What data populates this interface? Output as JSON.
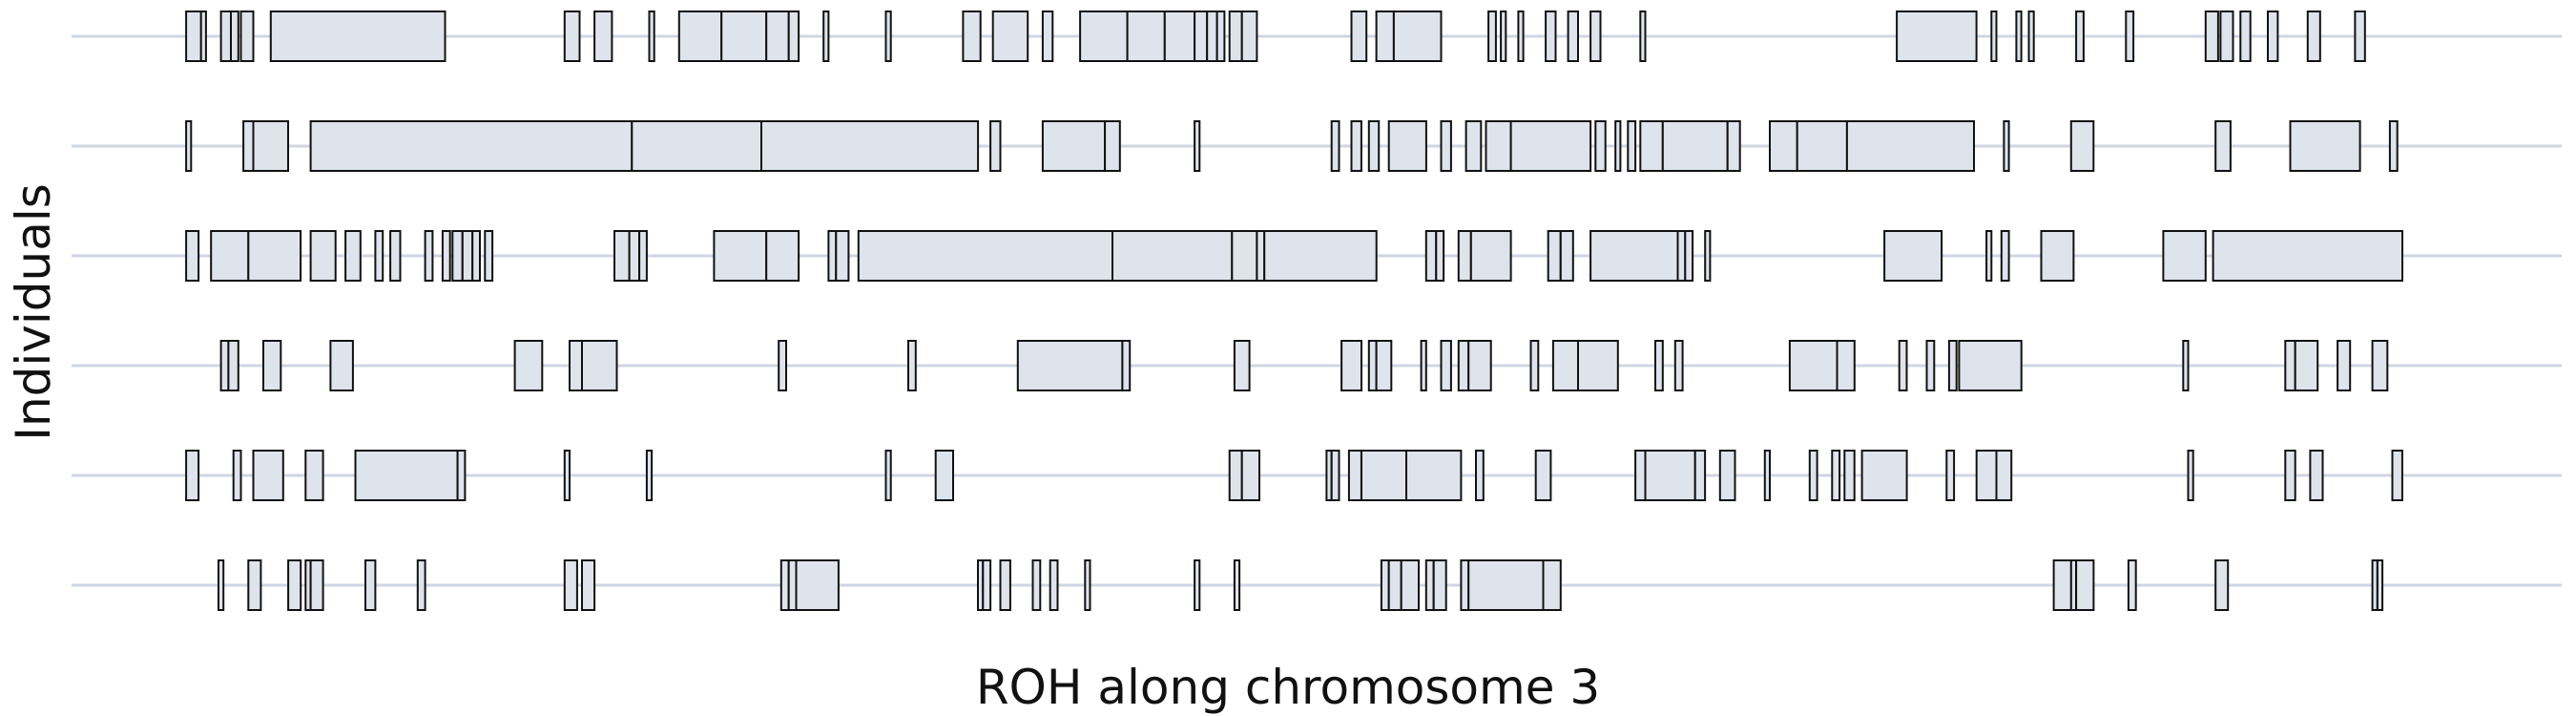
{
  "chart_data": {
    "type": "bar",
    "title": "",
    "xlabel": "ROH along chromosome 3",
    "ylabel": "Individuals",
    "xlim": [
      0,
      100
    ],
    "grid": true,
    "colors": {
      "segment_fill": "#dfe3ec",
      "segment_stroke": "#111111",
      "track_line": "#cfd6e2"
    },
    "series": [
      {
        "segments": [
          [
            4.6,
            5.2
          ],
          [
            5.2,
            5.4
          ],
          [
            6.0,
            6.4
          ],
          [
            6.4,
            6.7
          ],
          [
            6.8,
            7.3
          ],
          [
            8.0,
            15.0
          ],
          [
            19.8,
            20.4
          ],
          [
            21.0,
            21.7
          ],
          [
            23.2,
            23.4
          ],
          [
            24.4,
            26.1
          ],
          [
            26.1,
            27.9
          ],
          [
            27.9,
            28.8
          ],
          [
            28.8,
            29.2
          ],
          [
            30.2,
            30.4
          ],
          [
            32.7,
            32.9
          ],
          [
            35.8,
            36.5
          ],
          [
            37.0,
            38.4
          ],
          [
            39.0,
            39.4
          ],
          [
            40.5,
            42.4
          ],
          [
            42.4,
            43.9
          ],
          [
            43.9,
            45.1
          ],
          [
            45.1,
            45.6
          ],
          [
            45.6,
            46.0
          ],
          [
            46.0,
            46.3
          ],
          [
            46.5,
            47.0
          ],
          [
            47.0,
            47.6
          ],
          [
            51.4,
            52.0
          ],
          [
            52.4,
            53.1
          ],
          [
            53.1,
            55.0
          ],
          [
            56.9,
            57.2
          ],
          [
            57.4,
            57.6
          ],
          [
            58.1,
            58.3
          ],
          [
            59.2,
            59.6
          ],
          [
            60.1,
            60.5
          ],
          [
            61.0,
            61.4
          ],
          [
            63.0,
            63.2
          ],
          [
            73.3,
            76.5
          ],
          [
            77.1,
            77.3
          ],
          [
            78.1,
            78.3
          ],
          [
            78.6,
            78.8
          ],
          [
            80.5,
            80.8
          ],
          [
            82.5,
            82.8
          ],
          [
            85.7,
            86.2
          ],
          [
            86.3,
            86.8
          ],
          [
            87.1,
            87.5
          ],
          [
            88.2,
            88.6
          ],
          [
            89.8,
            90.3
          ],
          [
            91.7,
            92.1
          ]
        ]
      },
      {
        "segments": [
          [
            4.6,
            4.8
          ],
          [
            6.9,
            7.3
          ],
          [
            7.3,
            8.7
          ],
          [
            9.6,
            22.5
          ],
          [
            22.5,
            27.7
          ],
          [
            27.7,
            36.4
          ],
          [
            36.9,
            37.3
          ],
          [
            39.0,
            41.5
          ],
          [
            41.5,
            42.1
          ],
          [
            45.1,
            45.3
          ],
          [
            50.6,
            50.9
          ],
          [
            51.4,
            51.8
          ],
          [
            52.1,
            52.5
          ],
          [
            52.9,
            54.4
          ],
          [
            55.0,
            55.4
          ],
          [
            56.0,
            56.6
          ],
          [
            56.8,
            57.8
          ],
          [
            57.8,
            61.0
          ],
          [
            61.2,
            61.6
          ],
          [
            62.0,
            62.2
          ],
          [
            62.5,
            62.8
          ],
          [
            63.0,
            63.9
          ],
          [
            63.9,
            66.5
          ],
          [
            66.5,
            67.0
          ],
          [
            68.2,
            69.3
          ],
          [
            69.3,
            71.3
          ],
          [
            71.3,
            76.4
          ],
          [
            77.6,
            77.8
          ],
          [
            80.3,
            81.2
          ],
          [
            86.1,
            86.7
          ],
          [
            89.1,
            91.9
          ],
          [
            93.1,
            93.4
          ]
        ]
      },
      {
        "segments": [
          [
            4.6,
            5.1
          ],
          [
            5.6,
            7.1
          ],
          [
            7.1,
            9.2
          ],
          [
            9.6,
            10.6
          ],
          [
            11.0,
            11.6
          ],
          [
            12.2,
            12.5
          ],
          [
            12.8,
            13.2
          ],
          [
            14.2,
            14.5
          ],
          [
            14.9,
            15.2
          ],
          [
            15.3,
            15.7
          ],
          [
            15.7,
            16.1
          ],
          [
            16.1,
            16.4
          ],
          [
            16.6,
            16.9
          ],
          [
            21.8,
            22.4
          ],
          [
            22.4,
            22.8
          ],
          [
            22.8,
            23.1
          ],
          [
            25.8,
            27.9
          ],
          [
            27.9,
            29.2
          ],
          [
            30.4,
            30.7
          ],
          [
            30.7,
            31.2
          ],
          [
            31.6,
            41.8
          ],
          [
            41.8,
            46.6
          ],
          [
            46.6,
            47.6
          ],
          [
            47.6,
            47.9
          ],
          [
            47.9,
            52.4
          ],
          [
            54.4,
            54.8
          ],
          [
            54.8,
            55.1
          ],
          [
            55.7,
            56.2
          ],
          [
            56.2,
            57.8
          ],
          [
            59.3,
            59.8
          ],
          [
            59.8,
            60.3
          ],
          [
            61.0,
            64.5
          ],
          [
            64.5,
            64.8
          ],
          [
            64.8,
            65.1
          ],
          [
            65.6,
            65.8
          ],
          [
            72.8,
            75.1
          ],
          [
            76.9,
            77.1
          ],
          [
            77.5,
            77.8
          ],
          [
            79.1,
            80.4
          ],
          [
            84.0,
            85.7
          ],
          [
            86.0,
            93.6
          ]
        ]
      },
      {
        "segments": [
          [
            6.0,
            6.3
          ],
          [
            6.3,
            6.7
          ],
          [
            7.7,
            8.4
          ],
          [
            10.4,
            11.3
          ],
          [
            17.8,
            18.9
          ],
          [
            20.0,
            20.5
          ],
          [
            20.5,
            21.9
          ],
          [
            28.4,
            28.7
          ],
          [
            33.6,
            33.9
          ],
          [
            38.0,
            42.2
          ],
          [
            42.2,
            42.5
          ],
          [
            46.7,
            47.3
          ],
          [
            51.0,
            51.8
          ],
          [
            52.1,
            52.4
          ],
          [
            52.4,
            53.0
          ],
          [
            54.2,
            54.4
          ],
          [
            55.0,
            55.4
          ],
          [
            55.7,
            56.1
          ],
          [
            56.1,
            57.0
          ],
          [
            58.6,
            58.9
          ],
          [
            59.5,
            60.5
          ],
          [
            60.5,
            62.1
          ],
          [
            63.6,
            63.9
          ],
          [
            64.4,
            64.7
          ],
          [
            69.0,
            70.9
          ],
          [
            70.9,
            71.6
          ],
          [
            73.4,
            73.7
          ],
          [
            74.5,
            74.8
          ],
          [
            75.4,
            75.7
          ],
          [
            75.8,
            78.3
          ],
          [
            84.8,
            85.0
          ],
          [
            88.9,
            89.3
          ],
          [
            89.3,
            90.2
          ],
          [
            91.0,
            91.5
          ],
          [
            92.4,
            93.0
          ]
        ]
      },
      {
        "segments": [
          [
            4.6,
            5.1
          ],
          [
            6.5,
            6.8
          ],
          [
            7.3,
            8.5
          ],
          [
            9.4,
            10.1
          ],
          [
            11.4,
            15.5
          ],
          [
            15.5,
            15.8
          ],
          [
            19.8,
            20.0
          ],
          [
            23.1,
            23.3
          ],
          [
            32.7,
            32.9
          ],
          [
            34.7,
            35.4
          ],
          [
            46.5,
            47.0
          ],
          [
            47.0,
            47.7
          ],
          [
            50.4,
            50.6
          ],
          [
            50.6,
            50.9
          ],
          [
            51.3,
            51.8
          ],
          [
            51.8,
            53.6
          ],
          [
            53.6,
            55.8
          ],
          [
            56.4,
            56.7
          ],
          [
            58.8,
            59.4
          ],
          [
            62.8,
            63.2
          ],
          [
            63.2,
            65.2
          ],
          [
            65.2,
            65.6
          ],
          [
            66.2,
            66.8
          ],
          [
            68.0,
            68.2
          ],
          [
            69.8,
            70.1
          ],
          [
            70.7,
            71.0
          ],
          [
            71.2,
            71.6
          ],
          [
            71.9,
            73.7
          ],
          [
            75.3,
            75.6
          ],
          [
            76.5,
            77.3
          ],
          [
            77.3,
            77.9
          ],
          [
            85.0,
            85.2
          ],
          [
            88.9,
            89.3
          ],
          [
            89.9,
            90.4
          ],
          [
            93.2,
            93.6
          ]
        ]
      },
      {
        "segments": [
          [
            5.9,
            6.1
          ],
          [
            7.1,
            7.6
          ],
          [
            8.7,
            9.2
          ],
          [
            9.4,
            9.6
          ],
          [
            9.6,
            10.1
          ],
          [
            11.8,
            12.2
          ],
          [
            13.9,
            14.2
          ],
          [
            19.8,
            20.3
          ],
          [
            20.5,
            21.0
          ],
          [
            28.5,
            28.8
          ],
          [
            28.8,
            29.1
          ],
          [
            29.1,
            30.8
          ],
          [
            36.4,
            36.6
          ],
          [
            36.6,
            36.9
          ],
          [
            37.3,
            37.7
          ],
          [
            38.6,
            38.9
          ],
          [
            39.3,
            39.6
          ],
          [
            40.7,
            40.9
          ],
          [
            45.1,
            45.3
          ],
          [
            46.7,
            46.9
          ],
          [
            52.6,
            52.9
          ],
          [
            52.9,
            53.4
          ],
          [
            53.4,
            54.1
          ],
          [
            54.4,
            54.7
          ],
          [
            54.7,
            55.2
          ],
          [
            55.8,
            56.1
          ],
          [
            56.1,
            59.1
          ],
          [
            59.1,
            59.8
          ],
          [
            79.6,
            80.3
          ],
          [
            80.3,
            80.5
          ],
          [
            80.5,
            81.2
          ],
          [
            82.6,
            82.9
          ],
          [
            86.1,
            86.6
          ],
          [
            92.4,
            92.6
          ],
          [
            92.6,
            92.8
          ]
        ]
      }
    ]
  }
}
